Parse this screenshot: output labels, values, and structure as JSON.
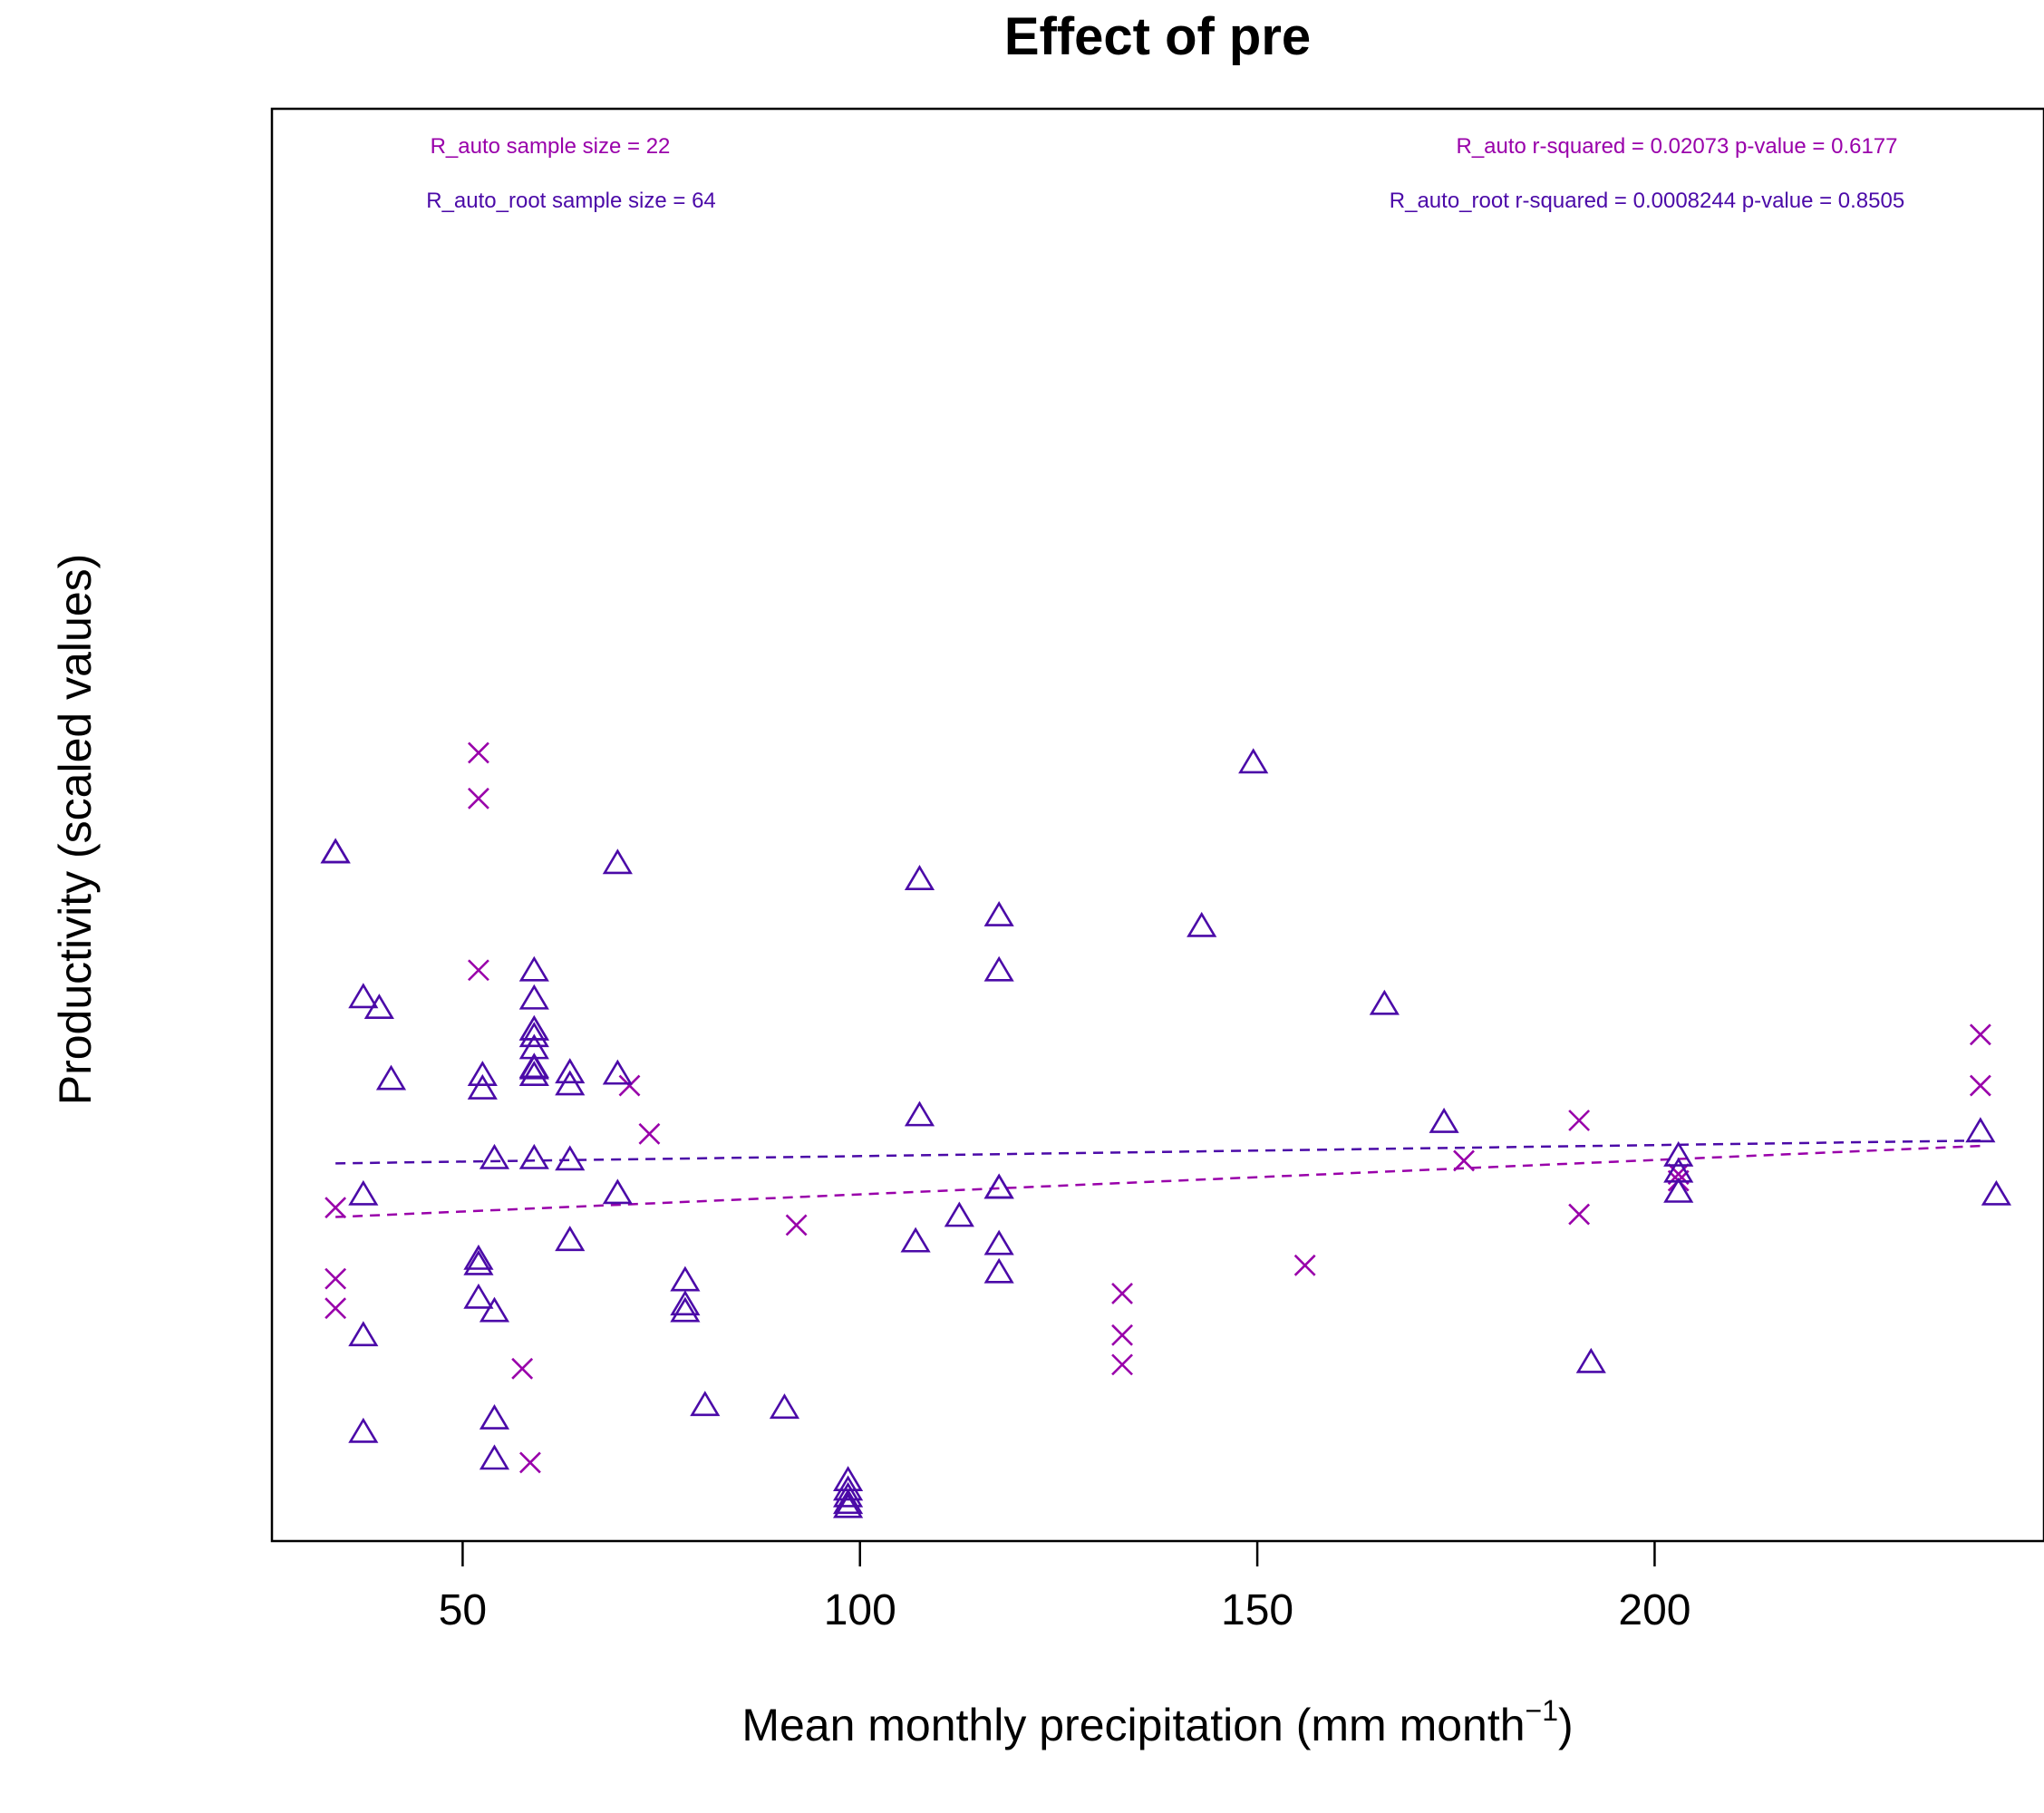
{
  "chart_data": {
    "type": "scatter",
    "title": "Effect of pre",
    "xlabel": "Mean monthly precipitation (mm month",
    "xlabel_superscript": "−1",
    "xlabel_suffix": ")",
    "ylabel": "Productivity (scaled values)",
    "xlim": [
      26,
      249
    ],
    "ylim": [
      0,
      1
    ],
    "x_ticks": [
      50,
      100,
      150,
      200
    ],
    "y_ticks_shown": false,
    "grid": false,
    "colors": {
      "R_auto": "#9900aa",
      "R_auto_root": "#4b0aa8",
      "axis": "#000000"
    },
    "annotations": {
      "R_auto_n": "R_auto sample size = 22",
      "R_auto_root_n": "R_auto_root sample size = 64",
      "R_auto_stats": "R_auto r-squared =  0.02073 p-value =  0.6177",
      "R_auto_root_stats": "R_auto_root r-squared =  0.0008244 p-value =  0.8505"
    },
    "series": [
      {
        "name": "R_auto",
        "marker": "x",
        "color": "#9900aa",
        "fit": {
          "x": [
            34,
            241
          ],
          "y": [
            0.228,
            0.281
          ]
        },
        "points": [
          [
            52,
            0.574
          ],
          [
            52,
            0.54
          ],
          [
            52,
            0.412
          ],
          [
            34,
            0.235
          ],
          [
            34,
            0.182
          ],
          [
            34,
            0.16
          ],
          [
            57.5,
            0.115
          ],
          [
            58.5,
            0.045
          ],
          [
            71,
            0.326
          ],
          [
            73.5,
            0.29
          ],
          [
            92,
            0.222
          ],
          [
            133,
            0.171
          ],
          [
            133,
            0.14
          ],
          [
            133,
            0.118
          ],
          [
            156,
            0.192
          ],
          [
            176,
            0.27
          ],
          [
            190.5,
            0.3
          ],
          [
            190.5,
            0.23
          ],
          [
            203,
            0.26
          ],
          [
            203,
            0.255
          ],
          [
            241,
            0.364
          ],
          [
            241,
            0.326
          ]
        ]
      },
      {
        "name": "R_auto_root",
        "marker": "triangle",
        "color": "#4b0aa8",
        "fit": {
          "x": [
            34,
            241
          ],
          "y": [
            0.268,
            0.285
          ]
        },
        "points": [
          [
            34,
            0.5
          ],
          [
            37.5,
            0.392
          ],
          [
            39.5,
            0.384
          ],
          [
            41,
            0.331
          ],
          [
            37.5,
            0.245
          ],
          [
            37.5,
            0.14
          ],
          [
            37.5,
            0.068
          ],
          [
            52.5,
            0.334
          ],
          [
            52.5,
            0.324
          ],
          [
            54,
            0.272
          ],
          [
            52,
            0.197
          ],
          [
            52,
            0.193
          ],
          [
            52,
            0.168
          ],
          [
            54,
            0.158
          ],
          [
            54,
            0.078
          ],
          [
            54,
            0.048
          ],
          [
            59,
            0.412
          ],
          [
            59,
            0.391
          ],
          [
            59,
            0.368
          ],
          [
            59,
            0.363
          ],
          [
            59,
            0.354
          ],
          [
            59,
            0.34
          ],
          [
            59,
            0.339
          ],
          [
            59,
            0.334
          ],
          [
            59,
            0.272
          ],
          [
            63.5,
            0.336
          ],
          [
            63.5,
            0.327
          ],
          [
            63.5,
            0.271
          ],
          [
            63.5,
            0.211
          ],
          [
            69.5,
            0.492
          ],
          [
            69.5,
            0.335
          ],
          [
            69.5,
            0.246
          ],
          [
            78,
            0.181
          ],
          [
            78,
            0.163
          ],
          [
            78,
            0.158
          ],
          [
            80.5,
            0.088
          ],
          [
            90.5,
            0.086
          ],
          [
            98.5,
            0.032
          ],
          [
            98.5,
            0.025
          ],
          [
            98.5,
            0.02
          ],
          [
            98.5,
            0.015
          ],
          [
            98.5,
            0.012
          ],
          [
            107.5,
            0.48
          ],
          [
            107.5,
            0.304
          ],
          [
            107,
            0.21
          ],
          [
            112.5,
            0.229
          ],
          [
            117.5,
            0.453
          ],
          [
            117.5,
            0.412
          ],
          [
            117.5,
            0.25
          ],
          [
            117.5,
            0.208
          ],
          [
            117.5,
            0.187
          ],
          [
            143,
            0.445
          ],
          [
            149.5,
            0.567
          ],
          [
            166,
            0.387
          ],
          [
            173.5,
            0.299
          ],
          [
            192,
            0.12
          ],
          [
            203,
            0.274
          ],
          [
            203,
            0.262
          ],
          [
            203,
            0.247
          ],
          [
            241,
            0.292
          ],
          [
            243,
            0.245
          ],
          [
            34,
            0.5
          ],
          [
            59,
            0.368
          ],
          [
            117.5,
            0.25
          ]
        ]
      }
    ]
  }
}
